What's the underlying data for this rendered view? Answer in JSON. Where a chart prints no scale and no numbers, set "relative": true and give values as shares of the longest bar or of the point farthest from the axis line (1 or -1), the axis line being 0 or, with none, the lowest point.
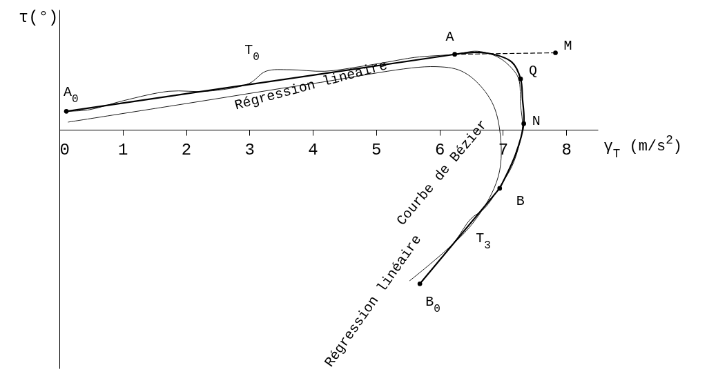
{
  "chart_data": {
    "type": "line",
    "relative": true,
    "xlabel": "γ$_{T}$ (m/s$^{2}$)",
    "ylabel": "τ(°)",
    "xlim": [
      0,
      8.5
    ],
    "xticks": [
      0,
      1,
      2,
      3,
      4,
      5,
      6,
      7,
      8
    ],
    "grid": false,
    "series": [
      {
        "color": "#000000",
        "x": [
          0.11,
          0.47,
          1.02,
          1.73,
          2.33,
          2.99,
          3.26,
          3.64,
          4.19,
          4.74,
          5.18,
          5.61,
          6.24,
          6.6,
          6.93,
          7.14,
          7.25,
          7.28,
          7.31,
          7.25,
          7.14,
          6.95,
          6.71,
          6.49,
          6.27,
          6.05,
          5.83,
          5.69
        ],
        "values": [
          0.12,
          0.13,
          0.19,
          0.25,
          0.25,
          0.3,
          0.38,
          0.39,
          0.38,
          0.41,
          0.44,
          0.47,
          0.49,
          0.51,
          0.47,
          0.4,
          0.33,
          0.16,
          0.02,
          -0.11,
          -0.24,
          -0.37,
          -0.51,
          -0.58,
          -0.71,
          -0.82,
          -0.93,
          -1.0
        ]
      },
      {
        "color": "#000000",
        "x": [
          0.11,
          6.24
        ],
        "values": [
          0.12,
          0.49
        ]
      },
      {
        "color": "#000000",
        "x": [
          6.24,
          6.71,
          7.14,
          7.28,
          7.31,
          7.33,
          7.2,
          6.95
        ],
        "values": [
          0.49,
          0.5,
          0.44,
          0.33,
          0.2,
          0.04,
          -0.16,
          -0.38
        ]
      },
      {
        "color": "#000000",
        "x": [
          6.95,
          5.69
        ],
        "values": [
          -0.38,
          -1.0
        ]
      },
      {
        "color": "#000000",
        "x": [
          0.14,
          2,
          4,
          5.94,
          6.4,
          6.8,
          6.95,
          6.93,
          6.5,
          5.53
        ],
        "values": [
          0.05,
          0.17,
          0.3,
          0.41,
          0.37,
          0.2,
          0.0,
          -0.3,
          -0.62,
          -0.98
        ]
      },
      {
        "color": "#000000",
        "line_style": "dashed",
        "x": [
          6.24,
          7.83
        ],
        "values": [
          0.49,
          0.5
        ]
      },
      {
        "type": "scatter",
        "color": "#000000",
        "marker": "circle",
        "x": [
          0.11,
          6.24,
          7.83,
          7.28,
          7.33,
          6.95,
          5.69
        ],
        "values": [
          0.12,
          0.49,
          0.5,
          0.33,
          0.04,
          -0.38,
          -1.0
        ]
      }
    ],
    "annotations": [
      {
        "text": "A$_{0}$",
        "x": 0.11,
        "y": 0.12
      },
      {
        "text": "A",
        "x": 6.24,
        "y": 0.49
      },
      {
        "text": "M",
        "x": 7.83,
        "y": 0.5
      },
      {
        "text": "Q",
        "x": 7.28,
        "y": 0.33
      },
      {
        "text": "N",
        "x": 7.33,
        "y": 0.04
      },
      {
        "text": "B",
        "x": 6.95,
        "y": -0.38
      },
      {
        "text": "B$_{0}$",
        "x": 5.69,
        "y": -1.0
      },
      "T$_{0}$",
      "T$_{3}$",
      {
        "text": "Régression linéaire",
        "x": 3.97,
        "y": 0.29
      },
      "Courbe de Bézier",
      "Régression linéaire"
    ]
  }
}
